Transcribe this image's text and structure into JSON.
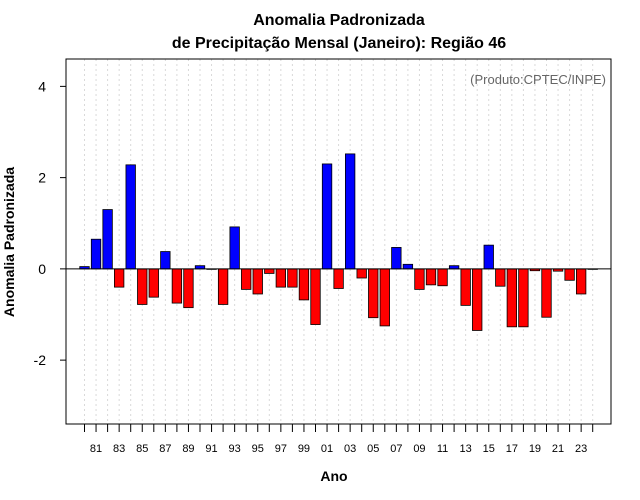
{
  "chart_data": {
    "type": "bar",
    "title_line1": "Anomalia Padronizada",
    "title_line2": "de Precipitação Mensal (Janeiro): Região 46",
    "xlabel": "Ano",
    "ylabel": "Anomalia Padronizada",
    "credit": "(Produto:CPTEC/INPE)",
    "ylim": [
      -3.4,
      4.6
    ],
    "yticks": [
      -2,
      0,
      2,
      4
    ],
    "ytick_labels": [
      "-2",
      "0",
      "2",
      "4"
    ],
    "xtick_labels": [
      "81",
      "83",
      "85",
      "87",
      "89",
      "91",
      "93",
      "95",
      "97",
      "99",
      "01",
      "03",
      "05",
      "07",
      "09",
      "11",
      "13",
      "15",
      "17",
      "19",
      "21",
      "23"
    ],
    "categories": [
      "1980",
      "1981",
      "1982",
      "1983",
      "1984",
      "1985",
      "1986",
      "1987",
      "1988",
      "1989",
      "1990",
      "1991",
      "1992",
      "1993",
      "1994",
      "1995",
      "1996",
      "1997",
      "1998",
      "1999",
      "2000",
      "2001",
      "2002",
      "2003",
      "2004",
      "2005",
      "2006",
      "2007",
      "2008",
      "2009",
      "2010",
      "2011",
      "2012",
      "2013",
      "2014",
      "2015",
      "2016",
      "2017",
      "2018",
      "2019",
      "2020",
      "2021",
      "2022",
      "2023",
      "2024"
    ],
    "values": [
      0.05,
      0.65,
      1.3,
      -0.4,
      2.28,
      -0.78,
      -0.62,
      0.38,
      -0.75,
      -0.85,
      0.07,
      0.0,
      -0.78,
      0.92,
      -0.45,
      -0.55,
      -0.1,
      -0.4,
      -0.4,
      -0.68,
      -1.22,
      2.3,
      -0.43,
      2.52,
      -0.2,
      -1.07,
      -1.25,
      0.47,
      0.1,
      -0.45,
      -0.35,
      -0.37,
      0.07,
      -0.8,
      -1.35,
      0.52,
      -0.38,
      -1.27,
      -1.27,
      -0.04,
      -1.06,
      -0.05,
      -0.25,
      -0.55,
      0.0
    ],
    "colors": {
      "positive": "#0000ff",
      "negative": "#ff0000",
      "grid": "#d9d9d9",
      "axis": "#000000"
    }
  }
}
